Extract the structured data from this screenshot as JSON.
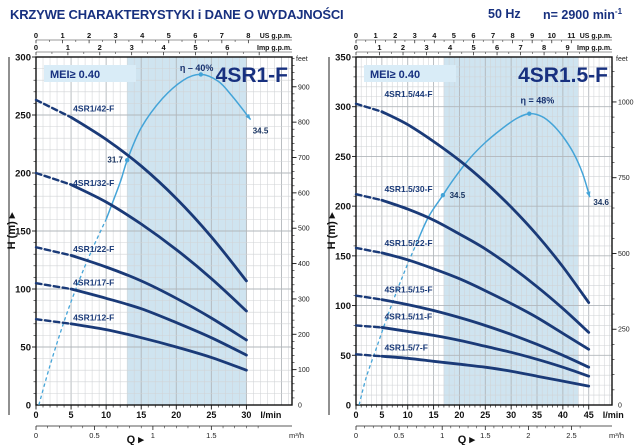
{
  "header": {
    "title": "KRZYWE CHARAKTERYSTYKI i DANE O WYDAJNOŚCI",
    "frequency": "50 Hz",
    "speed": "n= 2900 min",
    "speed_exp": "-1"
  },
  "chart_data": [
    {
      "type": "line",
      "name": "4SR1-F",
      "mei_label": "MEI≥ 0.40",
      "h_axis": {
        "label": "H (m)",
        "max": 300,
        "major": 50,
        "minor": 10,
        "unit": "m"
      },
      "feet_axis": {
        "label": "feet",
        "major": 100,
        "minor": 20
      },
      "q_axis": {
        "label": "Q",
        "unit_lpm": "l/min",
        "tick_max": 30,
        "major": 5,
        "minor": 1,
        "full": 36.5
      },
      "m3h_axis": {
        "unit": "m³/h",
        "labeled_ticks": [
          0,
          0.5,
          1,
          1.5
        ],
        "lpm_per_unit": 16.667
      },
      "us_gpm_axis": {
        "unit": "US g.p.m.",
        "max": 8,
        "lpm_per_unit": 3.785
      },
      "imp_gpm_axis": {
        "unit": "Imp g.p.m.",
        "max": 6,
        "lpm_per_unit": 4.546
      },
      "operating_band_lpm": [
        13,
        30
      ],
      "efficiency": {
        "label": "η – 40%",
        "label_at": [
          25.3,
          288
        ],
        "label_anchor": "end",
        "dashed": [
          [
            0.4,
            0
          ],
          [
            2,
            34
          ],
          [
            4,
            72
          ],
          [
            6,
            105
          ],
          [
            8,
            134
          ],
          [
            10,
            160
          ]
        ],
        "solid": [
          [
            10,
            160
          ],
          [
            12,
            192
          ],
          [
            13,
            211
          ],
          [
            15,
            239
          ],
          [
            18,
            264
          ],
          [
            21,
            280
          ],
          [
            23.5,
            285
          ],
          [
            26,
            279
          ],
          [
            28,
            266
          ],
          [
            30.6,
            246
          ]
        ],
        "peak_dot": [
          23.5,
          285
        ],
        "mid_dot": [
          13,
          211
        ],
        "mid_label": "31.7",
        "mid_label_at": [
          12.4,
          209
        ],
        "mid_anchor": "end",
        "end_label": "34.5",
        "end_label_at": [
          30.9,
          234
        ],
        "end_anchor": "start"
      },
      "curves": [
        {
          "label": "4SR1/42-F",
          "label_at": [
            5.3,
            253
          ],
          "points": [
            [
              0,
              263
            ],
            [
              5,
              248
            ],
            [
              10,
              229
            ],
            [
              15,
              206
            ],
            [
              20,
              178
            ],
            [
              25,
              145
            ],
            [
              30,
              107
            ]
          ]
        },
        {
          "label": "4SR1/32-F",
          "label_at": [
            5.3,
            189
          ],
          "points": [
            [
              0,
              200
            ],
            [
              5,
              190
            ],
            [
              10,
              175
            ],
            [
              15,
              156
            ],
            [
              20,
              134
            ],
            [
              25,
              109
            ],
            [
              30,
              81
            ]
          ]
        },
        {
          "label": "4SR1/22-F",
          "label_at": [
            5.3,
            132
          ],
          "points": [
            [
              0,
              136
            ],
            [
              5,
              129
            ],
            [
              10,
              119
            ],
            [
              15,
              107
            ],
            [
              20,
              92
            ],
            [
              25,
              75
            ],
            [
              30,
              56
            ]
          ]
        },
        {
          "label": "4SR1/17-F",
          "label_at": [
            5.3,
            103
          ],
          "points": [
            [
              0,
              105
            ],
            [
              5,
              100
            ],
            [
              10,
              92
            ],
            [
              15,
              83
            ],
            [
              20,
              71
            ],
            [
              25,
              58
            ],
            [
              30,
              43
            ]
          ]
        },
        {
          "label": "4SR1/12-F",
          "label_at": [
            5.3,
            73
          ],
          "points": [
            [
              0,
              74
            ],
            [
              5,
              70
            ],
            [
              10,
              65
            ],
            [
              15,
              58
            ],
            [
              20,
              50
            ],
            [
              25,
              41
            ],
            [
              30,
              30
            ]
          ]
        }
      ]
    },
    {
      "type": "line",
      "name": "4SR1.5-F",
      "mei_label": "MEI≥ 0.40",
      "h_axis": {
        "label": "H (m)",
        "max": 350,
        "major": 50,
        "minor": 10,
        "unit": "m"
      },
      "feet_axis": {
        "label": "feet",
        "major": 250,
        "minor": 50
      },
      "q_axis": {
        "label": "Q",
        "unit_lpm": "l/min",
        "tick_max": 45,
        "major": 5,
        "minor": 1,
        "full": 49.5
      },
      "m3h_axis": {
        "unit": "m³/h",
        "labeled_ticks": [
          0,
          0.5,
          1,
          1.5,
          2,
          2.5
        ],
        "lpm_per_unit": 16.667
      },
      "us_gpm_axis": {
        "unit": "US g.p.m.",
        "max": 11,
        "lpm_per_unit": 3.785
      },
      "imp_gpm_axis": {
        "unit": "Imp g.p.m.",
        "max": 9,
        "lpm_per_unit": 4.546
      },
      "operating_band_lpm": [
        17,
        43
      ],
      "efficiency": {
        "label": "η = 48%",
        "label_at": [
          31.8,
          303
        ],
        "label_anchor": "start",
        "dashed": [
          [
            0.6,
            0
          ],
          [
            2,
            28
          ],
          [
            4,
            58
          ],
          [
            6,
            88
          ],
          [
            8,
            116
          ],
          [
            10,
            142
          ],
          [
            12,
            166
          ]
        ],
        "solid": [
          [
            12,
            166
          ],
          [
            14,
            189
          ],
          [
            16.8,
            211
          ],
          [
            19,
            228
          ],
          [
            22,
            248
          ],
          [
            25,
            264
          ],
          [
            28,
            277
          ],
          [
            31,
            288
          ],
          [
            33.5,
            293
          ],
          [
            36,
            290
          ],
          [
            38,
            282
          ],
          [
            40,
            270
          ],
          [
            42,
            254
          ],
          [
            43.8,
            233
          ],
          [
            45.2,
            209
          ]
        ],
        "peak_dot": [
          33.5,
          293
        ],
        "mid_dot": [
          16.8,
          211
        ],
        "mid_label": "34.5",
        "mid_label_at": [
          18.1,
          208
        ],
        "mid_anchor": "start",
        "end_label": "34.6",
        "end_label_at": [
          45.9,
          201
        ],
        "end_anchor": "start"
      },
      "curves": [
        {
          "label": "4SR1.5/44-F",
          "label_at": [
            5.5,
            310
          ],
          "points": [
            [
              0,
              303
            ],
            [
              5,
              295
            ],
            [
              10,
              282
            ],
            [
              15,
              265
            ],
            [
              20,
              246
            ],
            [
              25,
              224
            ],
            [
              30,
              199
            ],
            [
              35,
              171
            ],
            [
              40,
              139
            ],
            [
              45,
              103
            ]
          ]
        },
        {
          "label": "4SR1.5/30-F",
          "label_at": [
            5.5,
            214
          ],
          "points": [
            [
              0,
              212
            ],
            [
              5,
              206
            ],
            [
              10,
              197
            ],
            [
              15,
              186
            ],
            [
              20,
              172
            ],
            [
              25,
              157
            ],
            [
              30,
              139
            ],
            [
              35,
              119
            ],
            [
              40,
              97
            ],
            [
              45,
              73
            ]
          ]
        },
        {
          "label": "4SR1.5/22-F",
          "label_at": [
            5.5,
            160
          ],
          "points": [
            [
              0,
              158
            ],
            [
              5,
              153
            ],
            [
              10,
              146
            ],
            [
              15,
              137
            ],
            [
              20,
              127
            ],
            [
              25,
              115
            ],
            [
              30,
              102
            ],
            [
              35,
              88
            ],
            [
              40,
              72
            ],
            [
              45,
              56
            ]
          ]
        },
        {
          "label": "4SR1.5/15-F",
          "label_at": [
            5.5,
            113
          ],
          "points": [
            [
              0,
              110
            ],
            [
              5,
              106
            ],
            [
              10,
              101
            ],
            [
              15,
              95
            ],
            [
              20,
              88
            ],
            [
              25,
              80
            ],
            [
              30,
              71
            ],
            [
              35,
              61
            ],
            [
              40,
              50
            ],
            [
              45,
              38
            ]
          ]
        },
        {
          "label": "4SR1.5/11-F",
          "label_at": [
            5.5,
            86
          ],
          "points": [
            [
              0,
              80
            ],
            [
              5,
              78
            ],
            [
              10,
              74
            ],
            [
              15,
              70
            ],
            [
              20,
              65
            ],
            [
              25,
              59
            ],
            [
              30,
              53
            ],
            [
              35,
              46
            ],
            [
              40,
              38
            ],
            [
              45,
              29
            ]
          ]
        },
        {
          "label": "4SR1.5/7-F",
          "label_at": [
            5.5,
            55
          ],
          "points": [
            [
              0,
              51
            ],
            [
              5,
              49
            ],
            [
              10,
              47
            ],
            [
              15,
              44
            ],
            [
              20,
              41
            ],
            [
              25,
              38
            ],
            [
              30,
              34
            ],
            [
              35,
              29
            ],
            [
              40,
              24
            ],
            [
              45,
              19
            ]
          ]
        }
      ]
    }
  ],
  "colors": {
    "navy": "#1a3a78",
    "title_navy": "#17307f",
    "efficiency_blue": "#44a4d8",
    "band_blue": "#cfe4f0",
    "mei_bg": "#d9ecf7",
    "grid_minor": "#d0d3d6",
    "grid_major": "#b2b7bb"
  }
}
